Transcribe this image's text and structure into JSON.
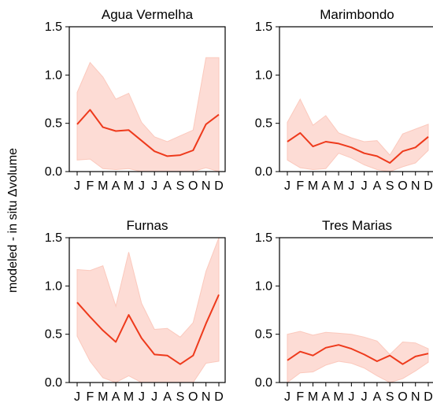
{
  "figure": {
    "ylabel": "modeled - in situ Δvolume"
  },
  "chart_data": [
    {
      "type": "line",
      "title": "Agua Vermelha",
      "categories": [
        "J",
        "F",
        "M",
        "A",
        "M",
        "J",
        "J",
        "A",
        "S",
        "O",
        "N",
        "D"
      ],
      "ylim": [
        0,
        1.5
      ],
      "yticks": [
        "0.0",
        "0.5",
        "1.0",
        "1.5"
      ],
      "series": [
        {
          "values": [
            0.49,
            0.64,
            0.46,
            0.42,
            0.43,
            0.32,
            0.21,
            0.16,
            0.17,
            0.22,
            0.49,
            0.59
          ]
        }
      ],
      "band_upper": [
        0.82,
        1.13,
        0.98,
        0.75,
        0.81,
        0.51,
        0.36,
        0.31,
        0.37,
        0.43,
        1.18,
        1.18
      ],
      "band_lower": [
        0.12,
        0.13,
        0.03,
        0.02,
        0.03,
        0.0,
        0.0,
        0.0,
        0.0,
        0.0,
        0.04,
        0.0
      ],
      "colors": {
        "line": "#ee3a1c",
        "band": "#fddcd5"
      }
    },
    {
      "type": "line",
      "title": "Marimbondo",
      "categories": [
        "J",
        "F",
        "M",
        "A",
        "M",
        "J",
        "J",
        "A",
        "S",
        "O",
        "N",
        "D"
      ],
      "ylim": [
        0,
        1.5
      ],
      "yticks": [
        "0.0",
        "0.5",
        "1.0",
        "1.5"
      ],
      "series": [
        {
          "values": [
            0.31,
            0.4,
            0.26,
            0.31,
            0.29,
            0.25,
            0.19,
            0.16,
            0.09,
            0.21,
            0.25,
            0.36
          ]
        }
      ],
      "band_upper": [
        0.51,
        0.75,
        0.48,
        0.58,
        0.4,
        0.35,
        0.31,
        0.32,
        0.17,
        0.39,
        0.44,
        0.49
      ],
      "band_lower": [
        0.12,
        0.04,
        0.02,
        0.03,
        0.19,
        0.14,
        0.07,
        0.02,
        0.0,
        0.05,
        0.09,
        0.22
      ],
      "colors": {
        "line": "#ee3a1c",
        "band": "#fddcd5"
      }
    },
    {
      "type": "line",
      "title": "Furnas",
      "categories": [
        "J",
        "F",
        "M",
        "A",
        "M",
        "J",
        "J",
        "A",
        "S",
        "O",
        "N",
        "D"
      ],
      "ylim": [
        0,
        1.5
      ],
      "yticks": [
        "0.0",
        "0.5",
        "1.0",
        "1.5"
      ],
      "series": [
        {
          "values": [
            0.83,
            0.68,
            0.54,
            0.42,
            0.7,
            0.46,
            0.29,
            0.28,
            0.19,
            0.28,
            0.61,
            0.91
          ]
        }
      ],
      "band_upper": [
        1.17,
        1.16,
        1.21,
        0.79,
        1.35,
        0.82,
        0.55,
        0.56,
        0.47,
        0.62,
        1.15,
        1.5
      ],
      "band_lower": [
        0.48,
        0.22,
        0.05,
        0.0,
        0.07,
        0.0,
        0.0,
        0.0,
        0.0,
        0.0,
        0.2,
        0.22
      ],
      "colors": {
        "line": "#ee3a1c",
        "band": "#fddcd5"
      }
    },
    {
      "type": "line",
      "title": "Tres Marias",
      "categories": [
        "J",
        "F",
        "M",
        "A",
        "M",
        "J",
        "J",
        "A",
        "S",
        "O",
        "N",
        "D"
      ],
      "ylim": [
        0,
        1.5
      ],
      "yticks": [
        "0.0",
        "0.5",
        "1.0",
        "1.5"
      ],
      "series": [
        {
          "values": [
            0.23,
            0.32,
            0.28,
            0.36,
            0.39,
            0.35,
            0.29,
            0.22,
            0.28,
            0.19,
            0.27,
            0.3
          ]
        }
      ],
      "band_upper": [
        0.5,
        0.53,
        0.49,
        0.52,
        0.51,
        0.5,
        0.47,
        0.43,
        0.29,
        0.42,
        0.41,
        0.35
      ],
      "band_lower": [
        0.0,
        0.1,
        0.11,
        0.18,
        0.22,
        0.2,
        0.15,
        0.07,
        0.0,
        0.04,
        0.12,
        0.21
      ],
      "colors": {
        "line": "#ee3a1c",
        "band": "#fddcd5"
      }
    }
  ]
}
